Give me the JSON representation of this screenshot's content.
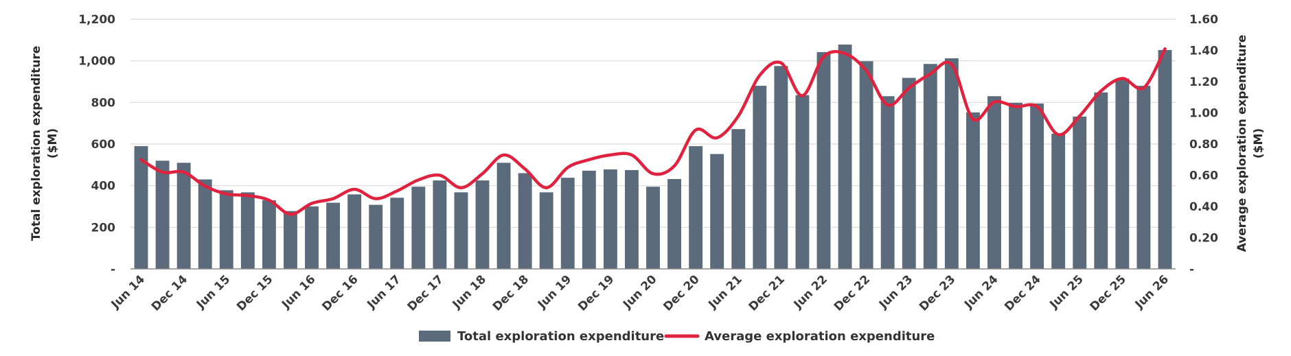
{
  "chart_data": {
    "type": "bar",
    "categories": [
      "Jun 14",
      "Sep 14",
      "Dec 14",
      "Mar 15",
      "Jun 15",
      "Sep 15",
      "Dec 15",
      "Mar 16",
      "Jun 16",
      "Sep 16",
      "Dec 16",
      "Mar 17",
      "Jun 17",
      "Sep 17",
      "Dec 17",
      "Mar 18",
      "Jun 18",
      "Sep 18",
      "Dec 18",
      "Mar 19",
      "Jun 19",
      "Sep 19",
      "Dec 19",
      "Mar 20",
      "Jun 20",
      "Sep 20",
      "Dec 20",
      "Mar 21",
      "Jun 21",
      "Sep 21",
      "Dec 21",
      "Mar 22",
      "Jun 22",
      "Sep 22",
      "Dec 22",
      "Mar 23",
      "Jun 23",
      "Sep 23",
      "Dec 23",
      "Mar 24",
      "Jun 24",
      "Sep 24",
      "Dec 24",
      "Mar 25",
      "Jun 25",
      "Sep 25",
      "Dec 25",
      "Mar 26",
      "Jun 26"
    ],
    "x_tick_labels": [
      "Jun 14",
      "Dec 14",
      "Jun 15",
      "Dec 15",
      "Jun 16",
      "Dec 16",
      "Jun 17",
      "Dec 17",
      "Jun 18",
      "Dec 18",
      "Jun 19",
      "Dec 19",
      "Jun 20",
      "Dec 20",
      "Jun 21",
      "Dec 21",
      "Jun 22",
      "Dec 22",
      "Jun 23",
      "Dec 23",
      "Jun 24",
      "Dec 24",
      "Jun 25",
      "Dec 25",
      "Jun 26"
    ],
    "series": [
      {
        "name": "Total exploration expenditure",
        "kind": "bar",
        "axis": "left",
        "color": "#5b6b7b",
        "values": [
          590,
          520,
          510,
          430,
          378,
          368,
          330,
          278,
          300,
          318,
          358,
          308,
          342,
          395,
          425,
          368,
          425,
          510,
          460,
          368,
          438,
          472,
          478,
          475,
          395,
          432,
          590,
          552,
          672,
          880,
          975,
          835,
          1042,
          1078,
          998,
          830,
          918,
          985,
          1012,
          752,
          830,
          798,
          795,
          650,
          732,
          848,
          915,
          880,
          1052
        ]
      },
      {
        "name": "Average exploration expenditure",
        "kind": "line",
        "axis": "right",
        "color": "#e0223e",
        "values": [
          0.7,
          0.62,
          0.62,
          0.53,
          0.48,
          0.47,
          0.44,
          0.35,
          0.42,
          0.45,
          0.51,
          0.45,
          0.5,
          0.57,
          0.6,
          0.52,
          0.61,
          0.73,
          0.64,
          0.52,
          0.65,
          0.7,
          0.73,
          0.73,
          0.61,
          0.66,
          0.89,
          0.84,
          0.98,
          1.24,
          1.32,
          1.11,
          1.36,
          1.38,
          1.27,
          1.05,
          1.16,
          1.25,
          1.31,
          0.96,
          1.07,
          1.04,
          1.04,
          0.86,
          0.98,
          1.14,
          1.22,
          1.16,
          1.41
        ]
      }
    ],
    "y_left": {
      "label_line1": "Total exploration expenditure",
      "label_line2": "($M)",
      "ylim": [
        0,
        1200
      ],
      "ticks": [
        0,
        200,
        400,
        600,
        800,
        1000,
        1200
      ],
      "tick_labels": [
        "-",
        "200",
        "400",
        "600",
        "800",
        "1,000",
        "1,200"
      ]
    },
    "y_right": {
      "label_line1": "Average exploration expenditure",
      "label_line2": "($M)",
      "ylim": [
        0,
        1.6
      ],
      "ticks": [
        0,
        0.2,
        0.4,
        0.6,
        0.8,
        1.0,
        1.2,
        1.4,
        1.6
      ],
      "tick_labels": [
        "-",
        "0.20",
        "0.40",
        "0.60",
        "0.80",
        "1.00",
        "1.20",
        "1.40",
        "1.60"
      ]
    },
    "grid": true,
    "legend_position": "bottom"
  }
}
